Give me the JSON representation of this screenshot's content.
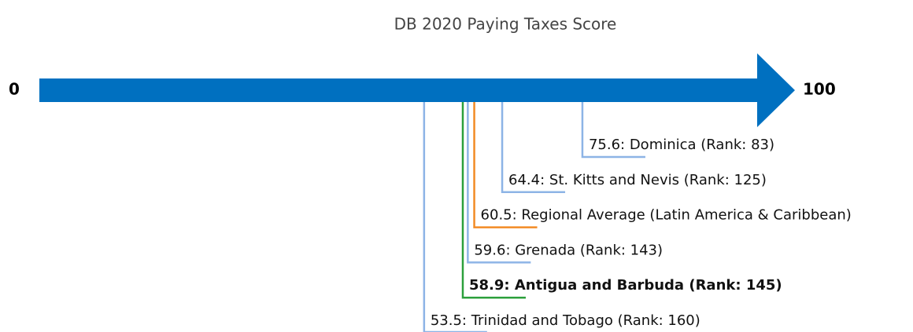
{
  "chart_data": {
    "type": "number-line",
    "title": "DB 2020 Paying Taxes Score",
    "xlim": [
      0,
      100
    ],
    "xticks": [
      0,
      100
    ],
    "arrow_color": "#0070c0",
    "items": [
      {
        "label": "75.6: Dominica (Rank: 83)",
        "value": 75.6,
        "color": "#8db4e6",
        "bold": false
      },
      {
        "label": "64.4: St. Kitts and Nevis (Rank: 125)",
        "value": 64.4,
        "color": "#8db4e6",
        "bold": false
      },
      {
        "label": "60.5: Regional Average (Latin America & Caribbean)",
        "value": 60.5,
        "color": "#f28b25",
        "bold": false
      },
      {
        "label": "59.6: Grenada (Rank: 143)",
        "value": 59.6,
        "color": "#8db4e6",
        "bold": false
      },
      {
        "label": "58.9: Antigua and Barbuda (Rank: 145)",
        "value": 58.9,
        "color": "#2ca03c",
        "bold": true
      },
      {
        "label": "53.5: Trinidad and Tobago (Rank: 160)",
        "value": 53.5,
        "color": "#8db4e6",
        "bold": false
      }
    ]
  }
}
